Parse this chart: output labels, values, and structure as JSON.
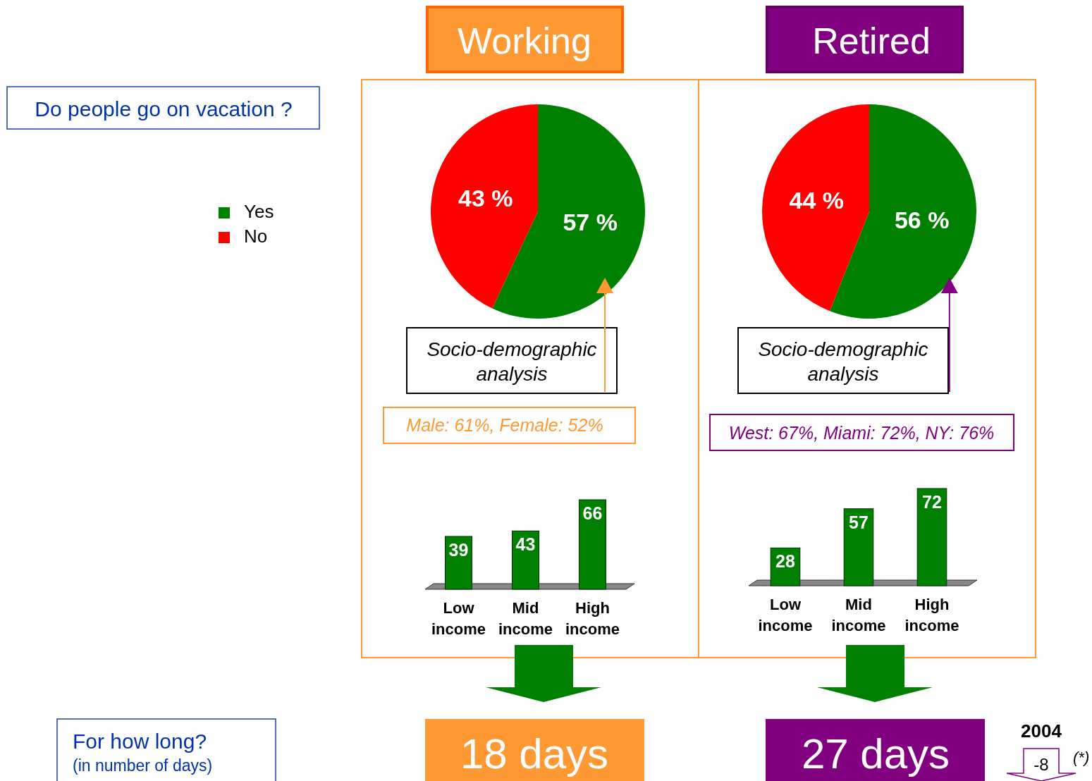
{
  "chart_data": [
    {
      "type": "pie",
      "title": "Working",
      "categories": [
        "Yes",
        "No"
      ],
      "values": [
        57,
        43
      ],
      "colors": [
        "#008000",
        "#ff0000"
      ],
      "value_labels": [
        "57 %",
        "43 %"
      ],
      "legend": "left",
      "annotations": [
        "Do people go on vacation ?",
        "Socio-demographic analysis",
        "Male: 61%, Female: 52%"
      ]
    },
    {
      "type": "bar",
      "categories": [
        "Low income",
        "Mid income",
        "High income"
      ],
      "values": [
        39,
        43,
        66
      ],
      "color": "#008000",
      "data_labels": true
    },
    {
      "type": "pie",
      "title": "Retired",
      "categories": [
        null,
        null
      ],
      "values": [
        56,
        44
      ],
      "colors": [
        "#008000",
        "#ff0000"
      ],
      "value_labels": [
        "56 %",
        "44 %"
      ],
      "annotations": [
        "Socio-demographic analysis",
        "West: 67%, Miami: 72%, NY: 76%"
      ]
    },
    {
      "type": "bar",
      "categories": [
        "Low income",
        "Mid income",
        "High income"
      ],
      "values": [
        28,
        57,
        72
      ],
      "color": "#008000",
      "data_labels": true
    },
    {
      "type": "other",
      "annotations": [
        "For how long?",
        "(in number of days)",
        "18 days",
        "27 days",
        "2004",
        "-8",
        "(*)"
      ]
    }
  ]
}
